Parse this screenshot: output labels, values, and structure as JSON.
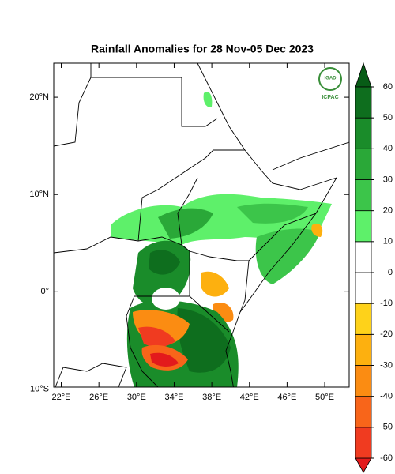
{
  "map": {
    "title": "Rainfall Anomalies for 28 Nov-05 Dec 2023",
    "logo": {
      "name": "IGAD",
      "org": "ICPAC"
    },
    "xlim": [
      21.2,
      52.6
    ],
    "ylim": [
      -9.8,
      23.5
    ],
    "xticks": [
      {
        "value": 22,
        "label": "22°E"
      },
      {
        "value": 26,
        "label": "26°E"
      },
      {
        "value": 30,
        "label": "30°E"
      },
      {
        "value": 34,
        "label": "34°E"
      },
      {
        "value": 38,
        "label": "38°E"
      },
      {
        "value": 42,
        "label": "42°E"
      },
      {
        "value": 46,
        "label": "46°E"
      },
      {
        "value": 50,
        "label": "50°E"
      }
    ],
    "yticks": [
      {
        "value": 20,
        "label": "20°N"
      },
      {
        "value": 10,
        "label": "10°N"
      },
      {
        "value": 0,
        "label": "0°"
      },
      {
        "value": -10,
        "label": "10°S"
      }
    ],
    "colorbar": {
      "levels": [
        -60,
        -50,
        -40,
        -30,
        -20,
        -10,
        0,
        10,
        20,
        30,
        40,
        50,
        60
      ],
      "colors": [
        "#e31a1c",
        "#f03b20",
        "#f8651a",
        "#fb8c12",
        "#fdb00f",
        "#fed21a",
        "#ffffff",
        "#ffffff",
        "#5ef06a",
        "#3cc54a",
        "#2aa838",
        "#1a8c2a",
        "#0e6e1e",
        "#075c16"
      ]
    }
  }
}
